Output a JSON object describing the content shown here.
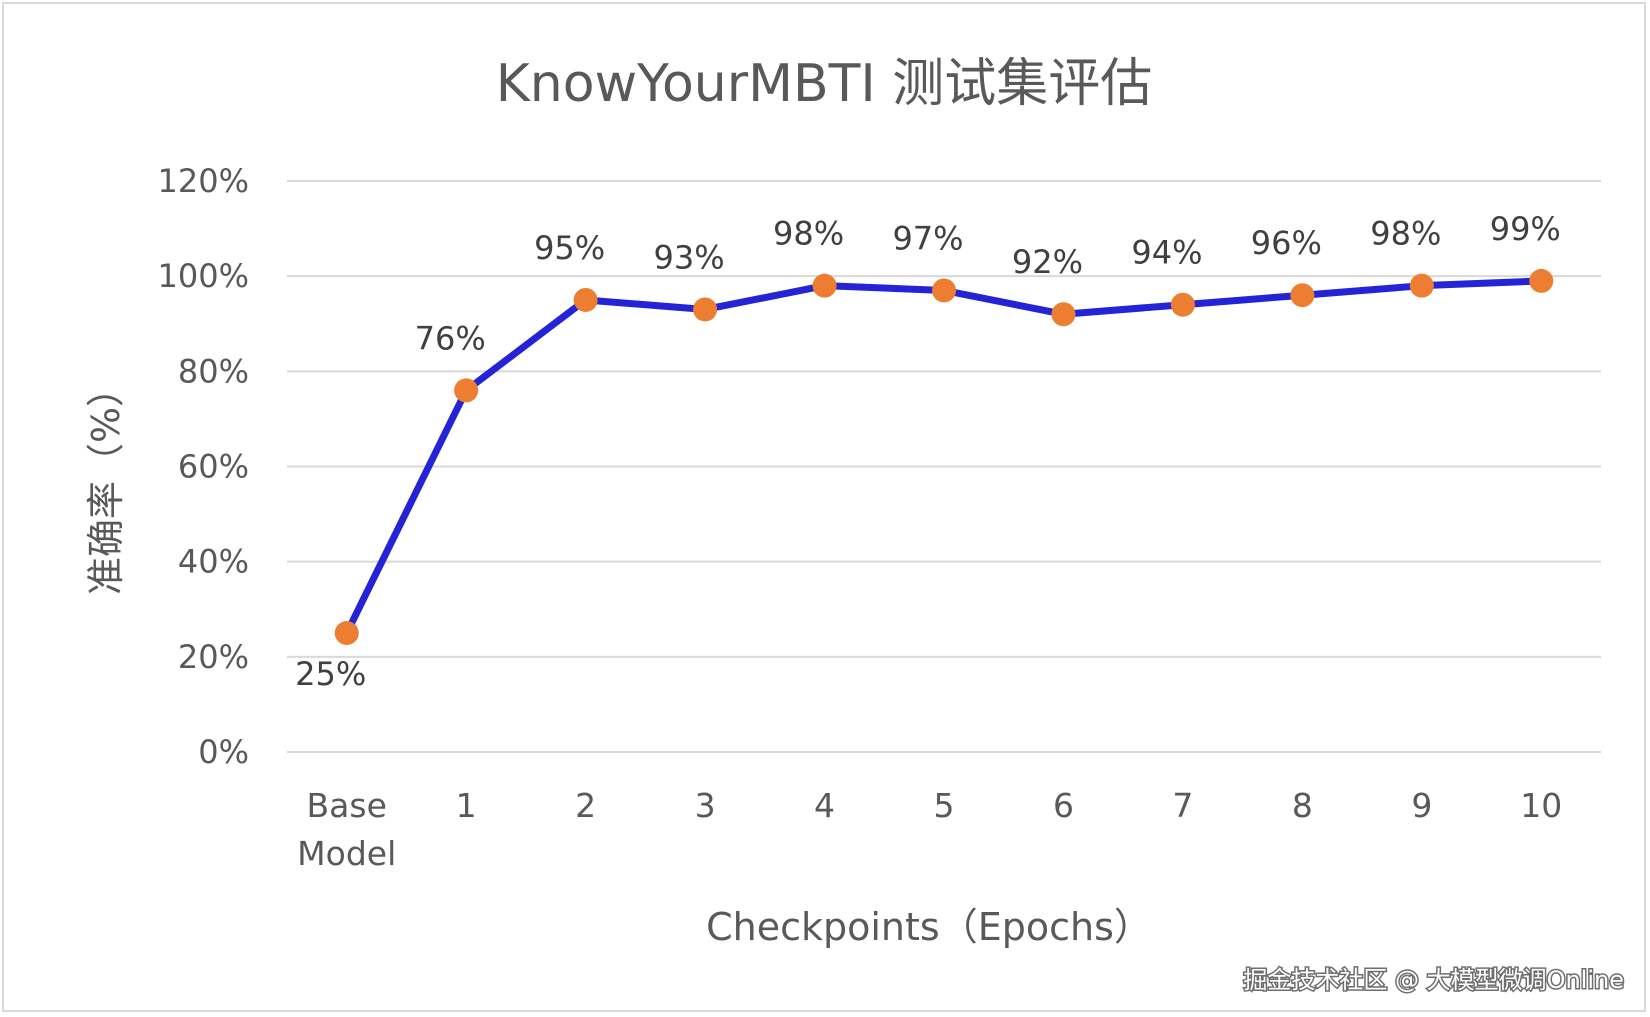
{
  "chart_data": {
    "type": "line",
    "title": "KnowYourMBTI 测试集评估",
    "xlabel": "Checkpoints（Epochs）",
    "ylabel": "准确率（%）",
    "categories": [
      [
        "Base",
        "Model"
      ],
      [
        "1"
      ],
      [
        "2"
      ],
      [
        "3"
      ],
      [
        "4"
      ],
      [
        "5"
      ],
      [
        "6"
      ],
      [
        "7"
      ],
      [
        "8"
      ],
      [
        "9"
      ],
      [
        "10"
      ]
    ],
    "values": [
      25,
      76,
      95,
      93,
      98,
      97,
      92,
      94,
      96,
      98,
      99
    ],
    "data_labels": [
      "25%",
      "76%",
      "95%",
      "93%",
      "98%",
      "97%",
      "92%",
      "94%",
      "96%",
      "98%",
      "99%"
    ],
    "data_label_side": [
      "below",
      "above",
      "above",
      "above",
      "above",
      "above",
      "above",
      "above",
      "above",
      "above",
      "above"
    ],
    "ylim": [
      0,
      120
    ],
    "y_ticks": [
      0,
      20,
      40,
      60,
      80,
      100,
      120
    ],
    "y_tick_labels": [
      "0%",
      "20%",
      "40%",
      "60%",
      "80%",
      "100%",
      "120%"
    ],
    "grid": true,
    "legend": "none",
    "line_color": "#2424d6",
    "marker_color": "#ed7d31"
  },
  "watermark": "掘金技术社区 @ 大模型微调Online"
}
